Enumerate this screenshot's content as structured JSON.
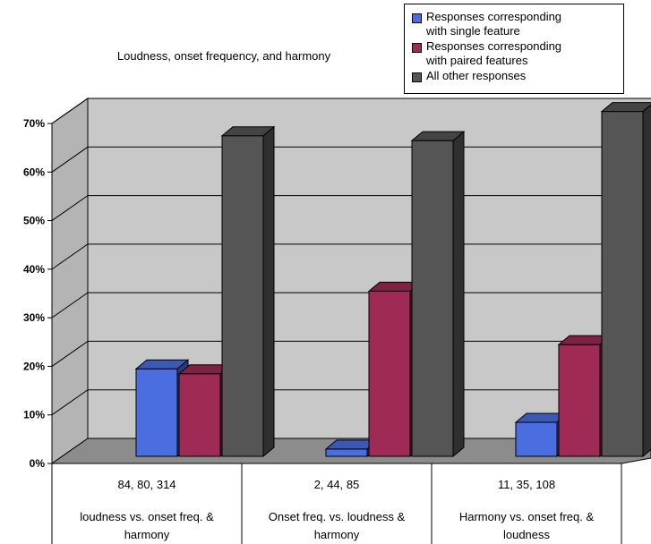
{
  "chart_data": {
    "type": "bar",
    "title": "Loudness, onset frequency, and harmony",
    "xlabel": "",
    "ylabel": "",
    "ylim": [
      0,
      70
    ],
    "y_ticks": [
      "0%",
      "10%",
      "20%",
      "30%",
      "40%",
      "50%",
      "60%",
      "70%"
    ],
    "grid": true,
    "legend_position": "top-right",
    "categories": [
      "loudness vs. onset freq. & harmony",
      "Onset freq. vs. loudness & harmony",
      "Harmony vs. onset freq. & loudness"
    ],
    "category_counts": [
      "84, 80, 314",
      "2, 44, 85",
      "11, 35, 108"
    ],
    "series": [
      {
        "name": "Responses corresponding\nwith single feature",
        "color": "#4a6ee0",
        "values": [
          18,
          1.5,
          7
        ]
      },
      {
        "name": "Responses corresponding\nwith paired features",
        "color": "#9e2a55",
        "values": [
          17,
          34,
          23
        ]
      },
      {
        "name": "All other responses",
        "color": "#555555",
        "values": [
          66,
          65,
          71
        ]
      }
    ]
  }
}
